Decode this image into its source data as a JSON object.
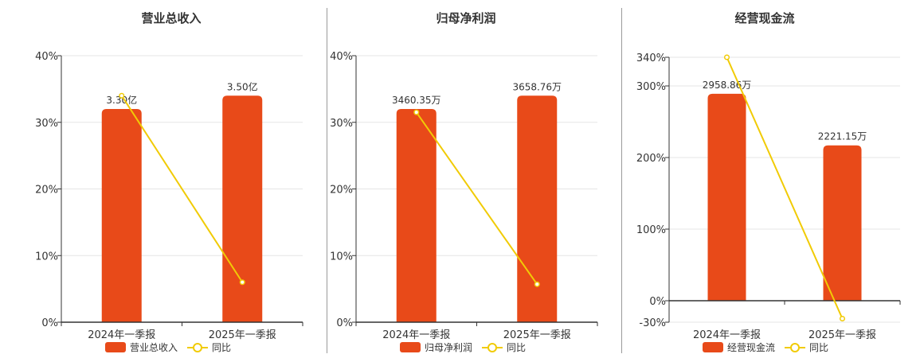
{
  "colors": {
    "bar": "#e84a19",
    "line": "#f1cb06",
    "axis": "#333333",
    "grid": "#e6e6e6"
  },
  "chart_data": [
    {
      "type": "bar",
      "title": "营业总收入",
      "categories": [
        "2024年一季报",
        "2025年一季报"
      ],
      "series": [
        {
          "name": "营业总收入",
          "type": "bar",
          "values": [
            32,
            34
          ],
          "labels": [
            "3.30亿",
            "3.50亿"
          ]
        },
        {
          "name": "同比",
          "type": "line",
          "values": [
            34,
            6
          ]
        }
      ],
      "ylim": [
        0,
        40
      ],
      "yticks": [
        0,
        10,
        20,
        30,
        40
      ],
      "ytick_labels": [
        "0%",
        "10%",
        "20%",
        "30%",
        "40%"
      ],
      "legend": "bottom",
      "grid": true
    },
    {
      "type": "bar",
      "title": "归母净利润",
      "categories": [
        "2024年一季报",
        "2025年一季报"
      ],
      "series": [
        {
          "name": "归母净利润",
          "type": "bar",
          "values": [
            32,
            34
          ],
          "labels": [
            "3460.35万",
            "3658.76万"
          ]
        },
        {
          "name": "同比",
          "type": "line",
          "values": [
            31.5,
            5.7
          ]
        }
      ],
      "ylim": [
        0,
        40
      ],
      "yticks": [
        0,
        10,
        20,
        30,
        40
      ],
      "ytick_labels": [
        "0%",
        "10%",
        "20%",
        "30%",
        "40%"
      ],
      "legend": "bottom",
      "grid": true
    },
    {
      "type": "bar",
      "title": "经营现金流",
      "categories": [
        "2024年一季报",
        "2025年一季报"
      ],
      "series": [
        {
          "name": "经营现金流",
          "type": "bar",
          "values": [
            289,
            217
          ],
          "labels": [
            "2958.86万",
            "2221.15万"
          ]
        },
        {
          "name": "同比",
          "type": "line",
          "values": [
            340,
            -25
          ]
        }
      ],
      "ylim": [
        -30,
        340
      ],
      "yticks": [
        -30,
        0,
        100,
        200,
        300,
        340
      ],
      "ytick_labels": [
        "-30%",
        "0%",
        "100%",
        "200%",
        "300%",
        "340%"
      ],
      "legend": "bottom",
      "grid": true
    }
  ]
}
